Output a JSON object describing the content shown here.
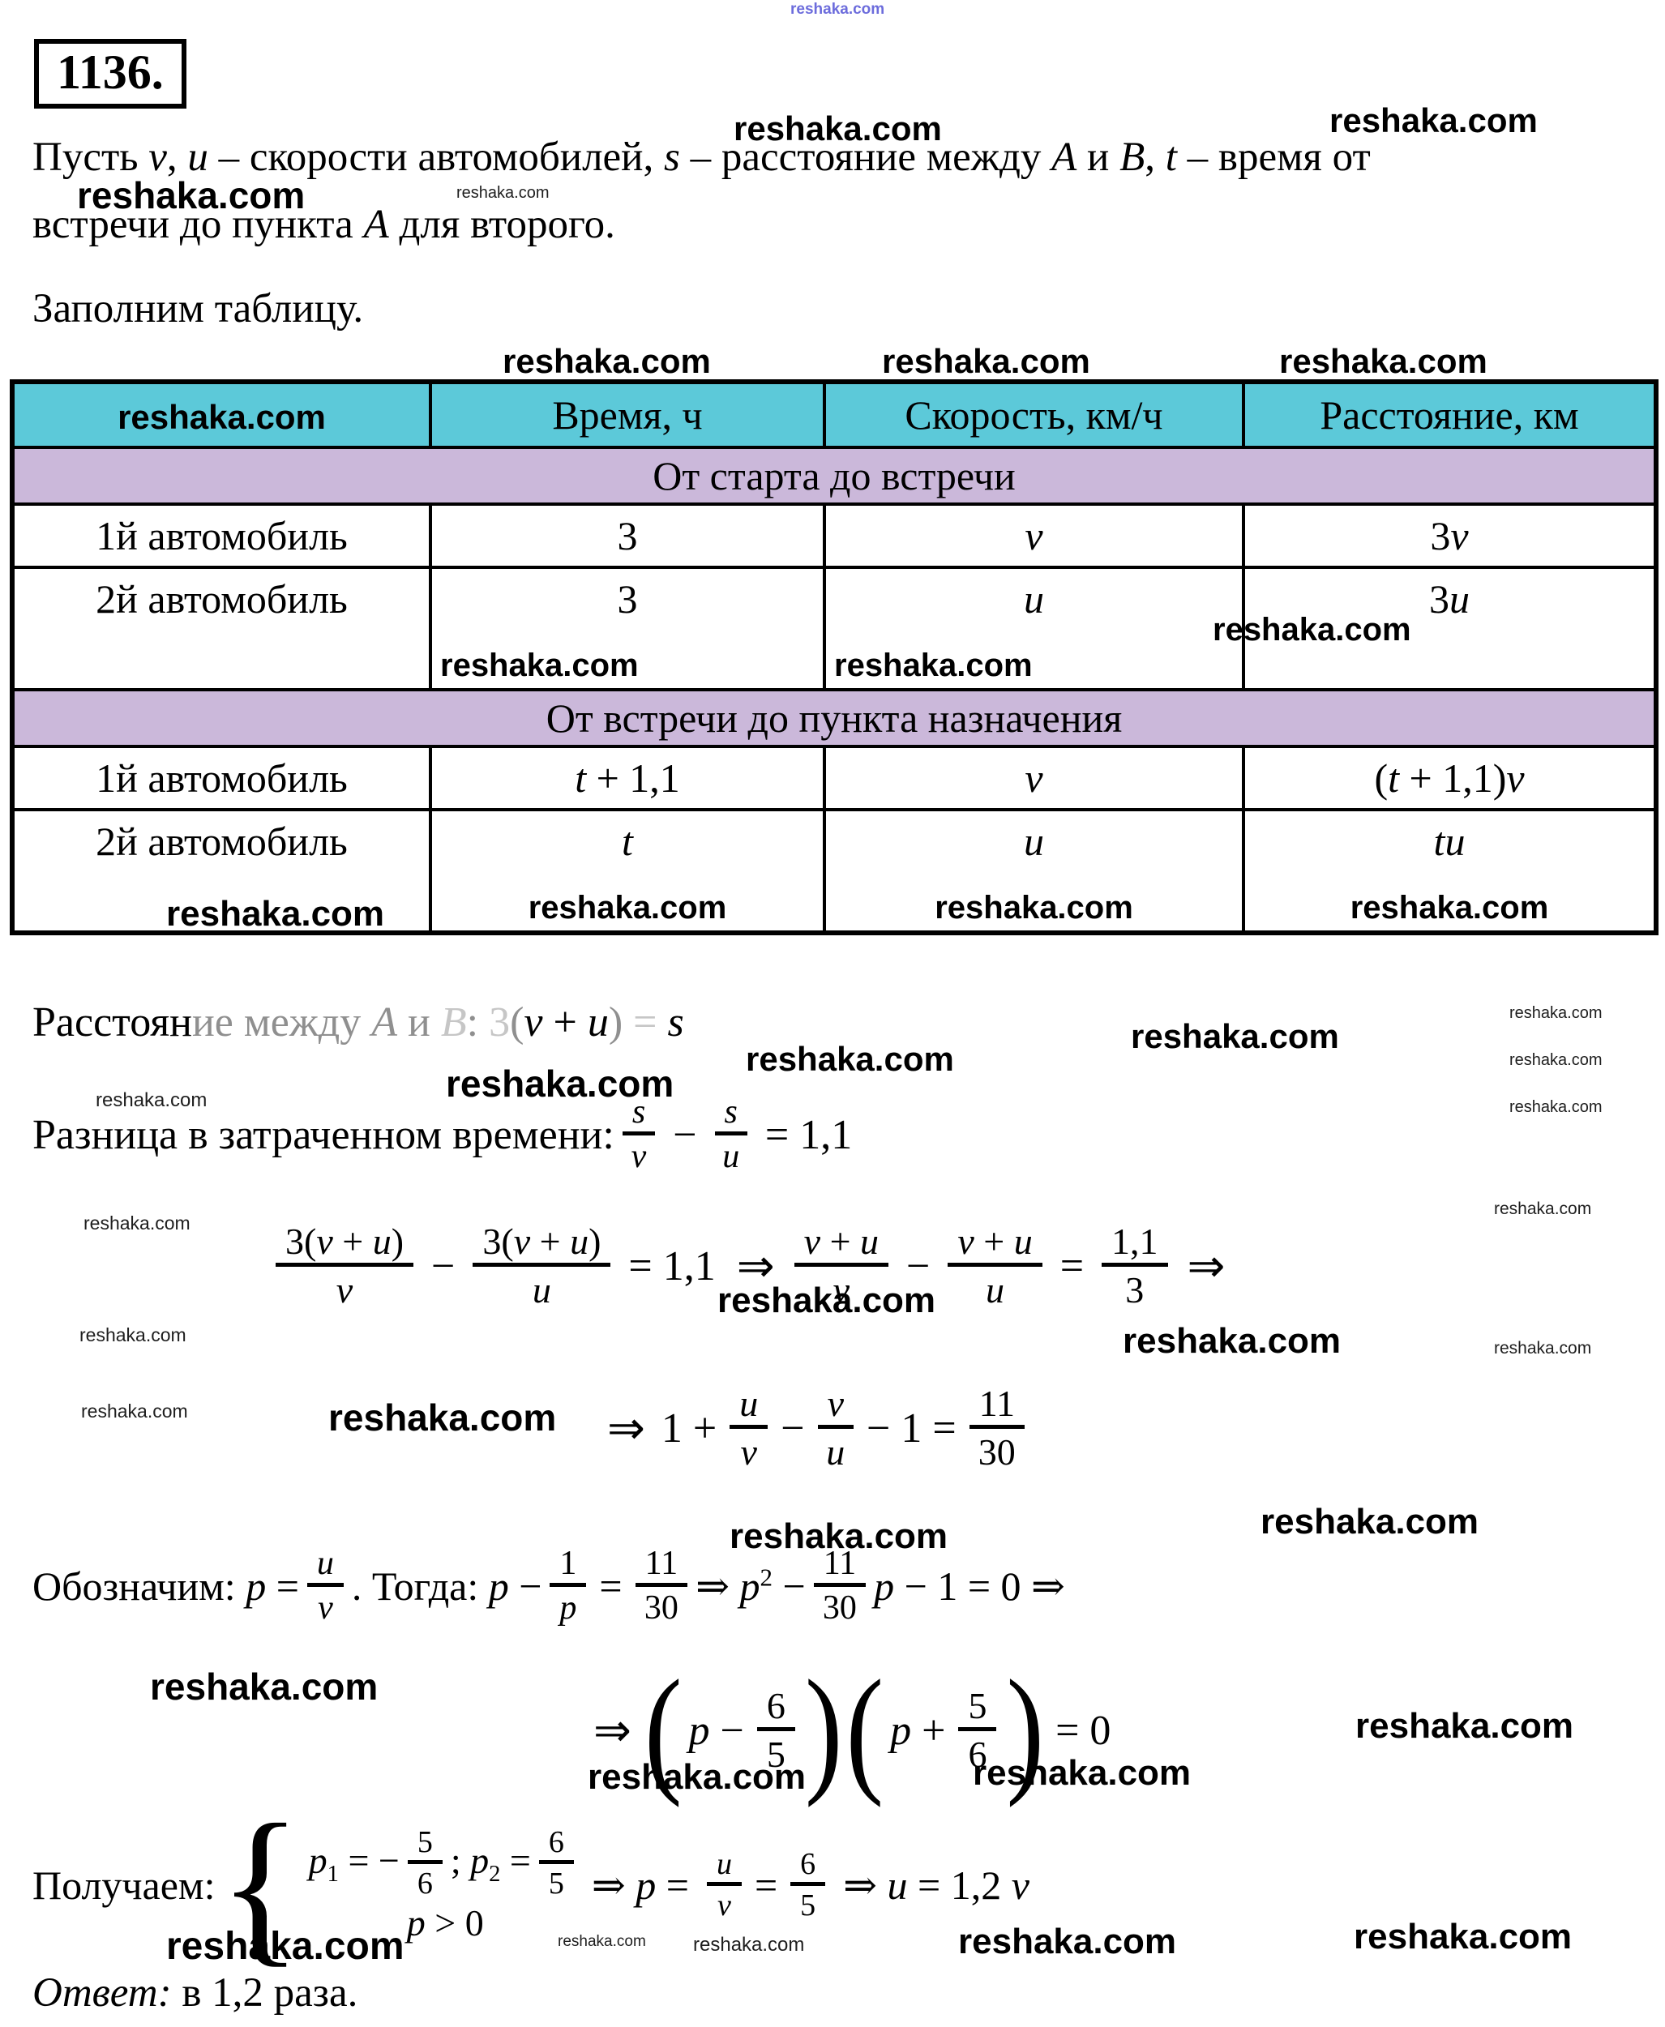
{
  "watermark": {
    "text": "reshaka.com"
  },
  "problem": {
    "number": "1136."
  },
  "intro": {
    "line1": [
      {
        "t": "Пусть "
      },
      {
        "t": "v",
        "i": 1
      },
      {
        "t": ", "
      },
      {
        "t": "u",
        "i": 1
      },
      {
        "t": " – скорости автомобилей, "
      },
      {
        "t": "s",
        "i": 1
      },
      {
        "t": " – расстояние между "
      },
      {
        "t": "А",
        "i": 1
      },
      {
        "t": " и "
      },
      {
        "t": "В",
        "i": 1
      },
      {
        "t": ", "
      },
      {
        "t": "t",
        "i": 1
      },
      {
        "t": " – время от"
      }
    ],
    "line2": [
      {
        "t": "встречи до пункта "
      },
      {
        "t": "А",
        "i": 1
      },
      {
        "t": " для второго."
      }
    ]
  },
  "fill_table": "Заполним таблицу.",
  "table": {
    "header": {
      "time": "Время, ч",
      "speed": "Скорость, км/ч",
      "distance": "Расстояние, км"
    },
    "sections": {
      "to_meeting": "От старта до встречи",
      "after_meeting": "От встречи до пункта назначения"
    },
    "rows": {
      "m1": {
        "label": "1й автомобиль",
        "time": [
          {
            "t": "3"
          }
        ],
        "speed": [
          {
            "t": "v",
            "i": 1
          }
        ],
        "distance": [
          {
            "t": "3"
          },
          {
            "t": "v",
            "i": 1
          }
        ]
      },
      "m2": {
        "label": "2й автомобиль",
        "time": [
          {
            "t": "3"
          }
        ],
        "speed": [
          {
            "t": "u",
            "i": 1
          }
        ],
        "distance": [
          {
            "t": "3"
          },
          {
            "t": "u",
            "i": 1
          }
        ]
      },
      "a1": {
        "label": "1й автомобиль",
        "time": [
          {
            "t": "t",
            "i": 1
          },
          {
            "t": " + 1,1"
          }
        ],
        "speed": [
          {
            "t": "v",
            "i": 1
          }
        ],
        "distance": [
          {
            "t": "("
          },
          {
            "t": "t",
            "i": 1
          },
          {
            "t": " + 1,1)"
          },
          {
            "t": "v",
            "i": 1
          }
        ]
      },
      "a2": {
        "label": "2й автомобиль",
        "time": [
          {
            "t": "t",
            "i": 1
          }
        ],
        "speed": [
          {
            "t": "u",
            "i": 1
          }
        ],
        "distance": [
          {
            "t": "t",
            "i": 1
          },
          {
            "t": "u",
            "i": 1
          }
        ]
      }
    }
  },
  "dist_line": [
    {
      "t": "Расстоян"
    },
    {
      "t": "ие межд",
      "c": "f1"
    },
    {
      "t": "у ",
      "c": "f1"
    },
    {
      "t": "А",
      "i": 1,
      "c": "f1"
    },
    {
      "t": " и ",
      "c": "f1"
    },
    {
      "t": "В",
      "i": 1,
      "c": "f2"
    },
    {
      "t": ": ",
      "c": "f1"
    },
    {
      "t": "  "
    },
    {
      "t": "3",
      "c": "f2"
    },
    {
      "t": "(",
      "c": "f1"
    },
    {
      "t": "v",
      "i": 1
    },
    {
      "t": " + "
    },
    {
      "t": "u",
      "i": 1
    },
    {
      "t": ")",
      "c": "f1"
    },
    {
      "t": " ",
      "c": "f1"
    },
    {
      "t": "=",
      "c": "f2"
    },
    {
      "t": "  "
    },
    {
      "t": "s",
      "i": 1
    }
  ],
  "diff_line": {
    "label": [
      {
        "t": "Разница в затраченном времени: "
      }
    ],
    "f1": {
      "num": [
        {
          "t": "s",
          "i": 1
        }
      ],
      "den": [
        {
          "t": "v",
          "i": 1
        }
      ]
    },
    "minus": "−",
    "f2": {
      "num": [
        {
          "t": "s",
          "i": 1
        }
      ],
      "den": [
        {
          "t": "u",
          "i": 1
        }
      ]
    },
    "rhs": "= 1,1"
  },
  "eq1": {
    "f1": {
      "num": [
        {
          "t": "3("
        },
        {
          "t": "v",
          "i": 1
        },
        {
          "t": " + "
        },
        {
          "t": "u",
          "i": 1
        },
        {
          "t": ")"
        }
      ],
      "den": [
        {
          "t": "v",
          "i": 1
        }
      ]
    },
    "minus": "−",
    "f2": {
      "num": [
        {
          "t": "3("
        },
        {
          "t": "v",
          "i": 1
        },
        {
          "t": " + "
        },
        {
          "t": "u",
          "i": 1
        },
        {
          "t": ")"
        }
      ],
      "den": [
        {
          "t": "u",
          "i": 1
        }
      ]
    },
    "rhs": "= 1,1",
    "implies": "⇒",
    "f3": {
      "num": [
        {
          "t": "v",
          "i": 1
        },
        {
          "t": " + "
        },
        {
          "t": "u",
          "i": 1
        }
      ],
      "den": [
        {
          "t": "v",
          "i": 1
        }
      ]
    },
    "f4": {
      "num": [
        {
          "t": "v",
          "i": 1
        },
        {
          "t": " + "
        },
        {
          "t": "u",
          "i": 1
        }
      ],
      "den": [
        {
          "t": "u",
          "i": 1
        }
      ]
    },
    "equals": "=",
    "f5": {
      "num": [
        {
          "t": "1,1"
        }
      ],
      "den": [
        {
          "t": "3"
        }
      ]
    }
  },
  "eq2": {
    "implies": "⇒",
    "pre": [
      {
        "t": "1 +"
      }
    ],
    "f1": {
      "num": [
        {
          "t": "u",
          "i": 1
        }
      ],
      "den": [
        {
          "t": "v",
          "i": 1
        }
      ]
    },
    "minus": "−",
    "f2": {
      "num": [
        {
          "t": "v",
          "i": 1
        }
      ],
      "den": [
        {
          "t": "u",
          "i": 1
        }
      ]
    },
    "mid": [
      {
        "t": "− 1 ="
      }
    ],
    "f3": {
      "num": [
        {
          "t": "11"
        }
      ],
      "den": [
        {
          "t": "30"
        }
      ]
    }
  },
  "denote": {
    "label": [
      {
        "t": "Обозначим: "
      },
      {
        "t": "p",
        "i": 1
      },
      {
        "t": " ="
      }
    ],
    "f1": {
      "num": [
        {
          "t": "u",
          "i": 1
        }
      ],
      "den": [
        {
          "t": "v",
          "i": 1
        }
      ]
    },
    "mid1": [
      {
        "t": ". Тогда: "
      },
      {
        "t": "p",
        "i": 1
      },
      {
        "t": " −"
      }
    ],
    "f2": {
      "num": [
        {
          "t": "1"
        }
      ],
      "den": [
        {
          "t": "p",
          "i": 1
        }
      ]
    },
    "eq": "=",
    "f3": {
      "num": [
        {
          "t": "11"
        }
      ],
      "den": [
        {
          "t": "30"
        }
      ]
    },
    "mid2": [
      {
        "t": "⇒ "
      },
      {
        "t": "p",
        "i": 1
      },
      {
        "t": "2",
        "sup": 1
      },
      {
        "t": " −"
      }
    ],
    "f4": {
      "num": [
        {
          "t": "11"
        }
      ],
      "den": [
        {
          "t": "30"
        }
      ]
    },
    "tail": [
      {
        "t": "p",
        "i": 1
      },
      {
        "t": " − 1 = 0 ⇒"
      }
    ]
  },
  "factor": {
    "implies": "⇒",
    "lparen": "(",
    "rparen": ")",
    "p_minus": [
      {
        "t": "p",
        "i": 1
      },
      {
        "t": " −"
      }
    ],
    "f1": {
      "num": [
        {
          "t": "6"
        }
      ],
      "den": [
        {
          "t": "5"
        }
      ]
    },
    "p_plus": [
      {
        "t": "p",
        "i": 1
      },
      {
        "t": " +"
      }
    ],
    "f2": {
      "num": [
        {
          "t": "5"
        }
      ],
      "den": [
        {
          "t": "6"
        }
      ]
    },
    "rhs": "= 0"
  },
  "final": {
    "label": [
      {
        "t": "Получаем: "
      }
    ],
    "brace": "{",
    "sys1a": [
      {
        "t": "p",
        "i": 1
      },
      {
        "t": "1",
        "sub": 1
      },
      {
        "t": " = −"
      }
    ],
    "sf1": {
      "num": [
        {
          "t": "5"
        }
      ],
      "den": [
        {
          "t": "6"
        }
      ]
    },
    "sys1b": [
      {
        "t": "; "
      },
      {
        "t": "p",
        "i": 1
      },
      {
        "t": "2",
        "sub": 1
      },
      {
        "t": " ="
      }
    ],
    "sf2": {
      "num": [
        {
          "t": "6"
        }
      ],
      "den": [
        {
          "t": "5"
        }
      ]
    },
    "sys2": [
      {
        "t": "p",
        "i": 1
      },
      {
        "t": " > 0"
      }
    ],
    "tail1": [
      {
        "t": "⇒ "
      },
      {
        "t": "p",
        "i": 1
      },
      {
        "t": " ="
      }
    ],
    "tf1": {
      "num": [
        {
          "t": "u",
          "i": 1
        }
      ],
      "den": [
        {
          "t": "v",
          "i": 1
        }
      ]
    },
    "eq": "=",
    "tf2": {
      "num": [
        {
          "t": "6"
        }
      ],
      "den": [
        {
          "t": "5"
        }
      ]
    },
    "tail2": [
      {
        "t": "⇒ "
      },
      {
        "t": "u",
        "i": 1
      },
      {
        "t": " = 1,2 "
      },
      {
        "t": "v",
        "i": 1
      }
    ]
  },
  "answer": [
    {
      "t": "Ответ:",
      "i": 1
    },
    {
      "t": " в 1,2 раза."
    }
  ]
}
